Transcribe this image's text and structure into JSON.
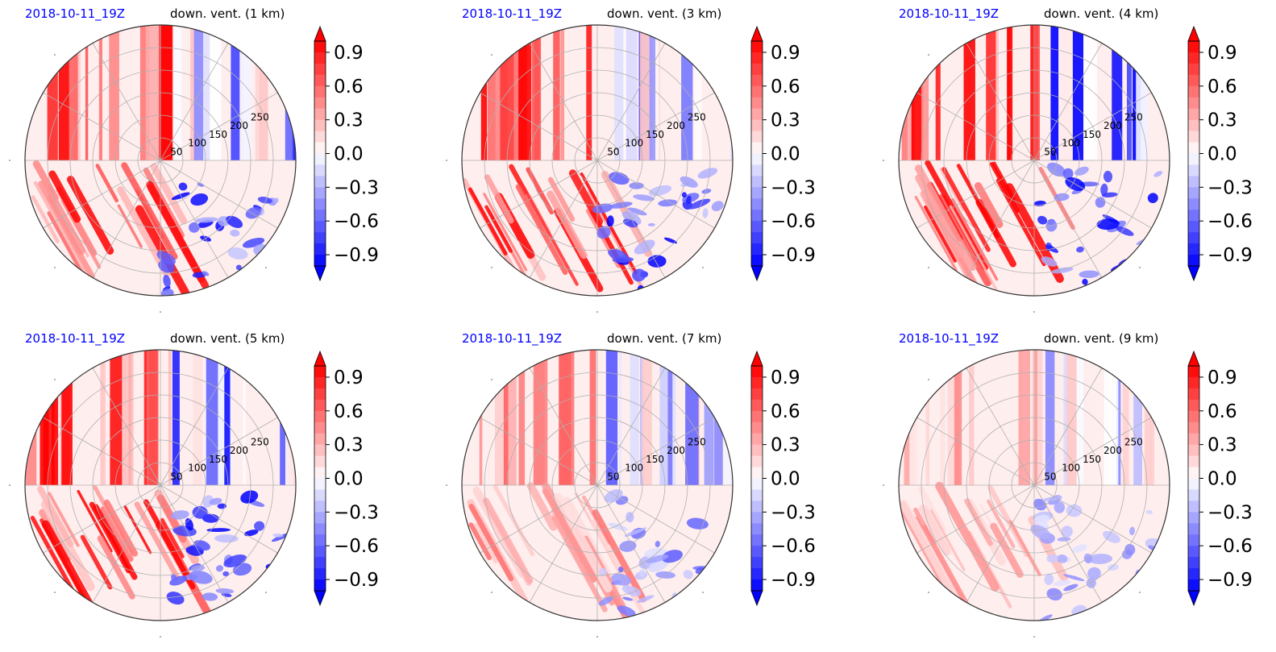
{
  "figure": {
    "panels": [
      {
        "date_label": "2018-10-11_19Z",
        "field_label": "down. vent. (1 km)"
      },
      {
        "date_label": "2018-10-11_19Z",
        "field_label": "down. vent. (3 km)"
      },
      {
        "date_label": "2018-10-11_19Z",
        "field_label": "down. vent. (4 km)"
      },
      {
        "date_label": "2018-10-11_19Z",
        "field_label": "down. vent. (5 km)"
      },
      {
        "date_label": "2018-10-11_19Z",
        "field_label": "down. vent. (7 km)"
      },
      {
        "date_label": "2018-10-11_19Z",
        "field_label": "down. vent. (9 km)"
      }
    ]
  },
  "chart_data": {
    "type": "heatmap",
    "projection": "polar",
    "grid": true,
    "legend": "colorbar-right-of-each-panel",
    "radial_ticks": [
      50,
      100,
      150,
      200,
      250
    ],
    "r_range": [
      0,
      300
    ],
    "colorbar": {
      "ticks": [
        "0.9",
        "0.6",
        "0.3",
        "0.0",
        "−0.3",
        "−0.6",
        "−0.9"
      ],
      "tick_values": [
        0.9,
        0.6,
        0.3,
        0.0,
        -0.3,
        -0.6,
        -0.9
      ],
      "range": [
        -1.0,
        1.0
      ],
      "extend": "both",
      "colormap": "bwr",
      "low_color": "#0000ff",
      "mid_color": "#ffffff",
      "high_color": "#ff0000"
    },
    "panels": [
      {
        "level_km": 1
      },
      {
        "level_km": 3
      },
      {
        "level_km": 4
      },
      {
        "level_km": 5
      },
      {
        "level_km": 7
      },
      {
        "level_km": 9
      }
    ]
  }
}
